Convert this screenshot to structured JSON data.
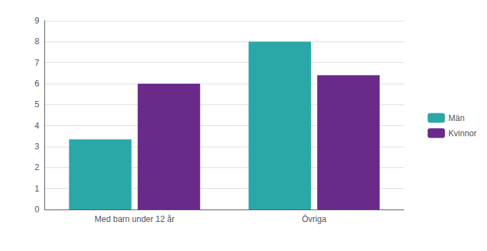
{
  "chart_data": {
    "type": "bar",
    "categories": [
      "Med barn under 12 år",
      "Övriga"
    ],
    "series": [
      {
        "name": "Män",
        "color": "#2aa8a8",
        "values": [
          3.35,
          8.0
        ]
      },
      {
        "name": "Kvinnor",
        "color": "#6a2a8a",
        "values": [
          6.0,
          6.4
        ]
      }
    ],
    "ylim": [
      0,
      9
    ],
    "yticks": [
      0,
      1,
      2,
      3,
      4,
      5,
      6,
      7,
      8,
      9
    ],
    "grid": true,
    "legend": "right"
  }
}
